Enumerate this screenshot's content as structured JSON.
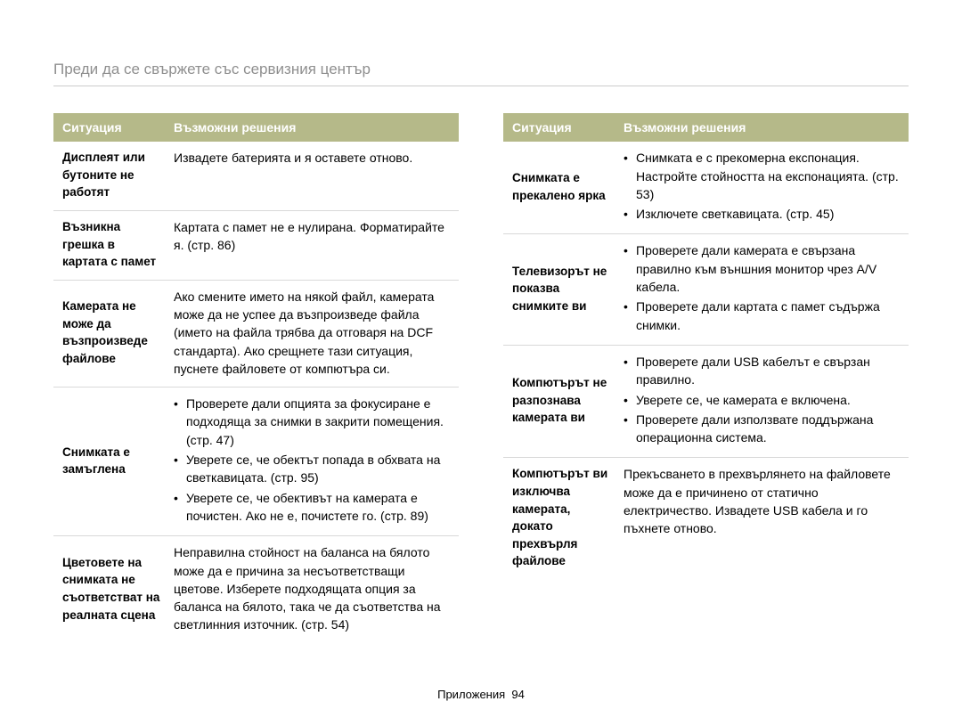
{
  "title": "Преди да се свържете със сервизния център",
  "header": {
    "situation": "Ситуация",
    "solutions": "Възможни решения"
  },
  "left": [
    {
      "situation": "Дисплеят или бутоните не работят",
      "solution_text": "Извадете батерията и я оставете отново."
    },
    {
      "situation": "Възникна грешка в картата с памет",
      "solution_text": "Картата с памет не е нулирана. Форматирайте я. (стр. 86)"
    },
    {
      "situation": "Камерата не може да възпроизведе файлове",
      "solution_text": "Ако смените името на някой файл, камерата може да не успее да възпроизведе файла (името на файла трябва да отговаря на DCF стандарта). Ако срещнете тази ситуация, пуснете файловете от компютъра си."
    },
    {
      "situation": "Снимката е замъглена",
      "bullets": [
        "Проверете дали опцията за фокусиране е подходяща за снимки в закрити помещения. (стр. 47)",
        "Уверете се, че обектът попада в обхвата на светкавицата. (стр. 95)",
        "Уверете се, че обективът на камерата е почистен. Ако не е, почистете го. (стр. 89)"
      ]
    },
    {
      "situation": "Цветовете на снимката не съответстват на реалната сцена",
      "solution_text": "Неправилна стойност на баланса на бялото може да е причина за несъответстващи цветове. Изберете подходящата опция за баланса на бялото, така че да съответства на светлинния източник. (стр. 54)"
    }
  ],
  "right": [
    {
      "situation": "Снимката е прекалено ярка",
      "bullets": [
        "Снимката е с прекомерна експонация. Настройте стойността на експонацията. (стр. 53)",
        "Изключете светкавицата. (стр. 45)"
      ]
    },
    {
      "situation": "Телевизорът не показва снимките ви",
      "bullets": [
        "Проверете дали камерата е свързана правилно към външния монитор чрез A/V кабела.",
        "Проверете дали картата с памет съдържа снимки."
      ]
    },
    {
      "situation": "Компютърът не разпознава камерата ви",
      "bullets": [
        "Проверете дали USB кабелът е свързан правилно.",
        "Уверете се, че камерата е включена.",
        "Проверете дали използвате поддържана операционна система."
      ]
    },
    {
      "situation": "Компютърът ви изключва камерата, докато прехвърля файлове",
      "solution_text": "Прекъсването в прехвърлянето на файловете може да е причинено от статично електричество. Извадете USB кабела и го пъхнете отново."
    }
  ],
  "footer": {
    "label": "Приложения",
    "page": "94"
  }
}
